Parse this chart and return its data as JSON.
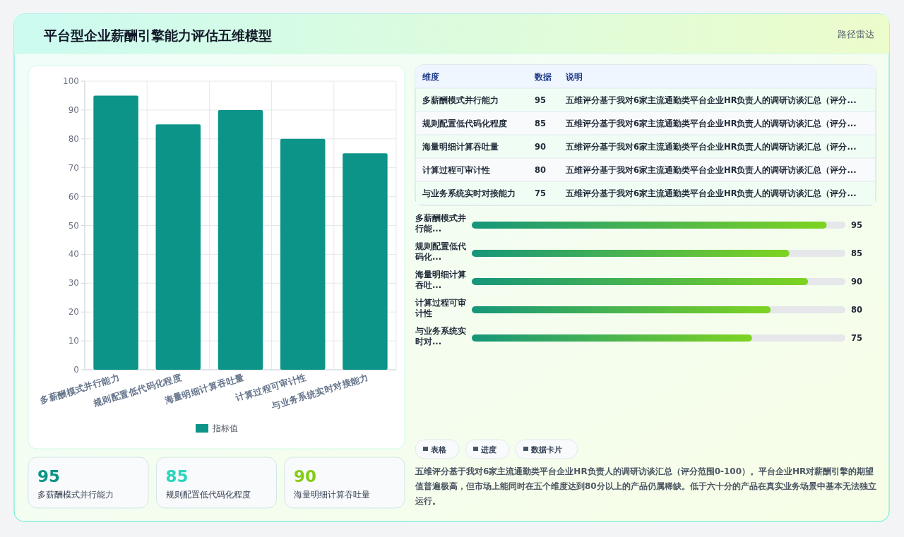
{
  "chart_data": [
    {
      "type": "other",
      "title": "平台型企业薪酬引擎能力评估五维模型",
      "subtitle": "路径雷达"
    },
    {
      "type": "bar",
      "categories": [
        "多薪酬模式并行能力",
        "规则配置低代码化程度",
        "海量明细计算吞吐量",
        "计算过程可审计性",
        "与业务系统实时对接能力"
      ],
      "series": [
        {
          "name": "指标值",
          "color": "#0d9488",
          "values": [
            95,
            85,
            90,
            80,
            75
          ]
        }
      ],
      "ylim": [
        0,
        100
      ],
      "yticks": [
        0,
        10,
        20,
        30,
        40,
        50,
        60,
        70,
        80,
        90,
        100
      ],
      "grid": true,
      "legend": "bottom"
    },
    {
      "type": "other",
      "annotations": [
        "维度",
        "数据",
        "说明",
        "多薪酬模式并行能力",
        "95",
        "五维评分基于我对6家主流通勤类平台企业HR负责人的调研访谈汇总（评分...",
        "规则配置低代码化程度",
        "85",
        "五维评分基于我对6家主流通勤类平台企业HR负责人的调研访谈汇总（评分...",
        "海量明细计算吞吐量",
        "90",
        "五维评分基于我对6家主流通勤类平台企业HR负责人的调研访谈汇总（评分...",
        "计算过程可审计性",
        "80",
        "五维评分基于我对6家主流通勤类平台企业HR负责人的调研访谈汇总（评分...",
        "与业务系统实时对接能力",
        "75",
        "五维评分基于我对6家主流通勤类平台企业HR负责人的调研访谈汇总（评分..."
      ]
    },
    {
      "type": "bar",
      "orientation": "horizontal",
      "categories": [
        "多薪酬模式并行能...",
        "规则配置低代码化...",
        "海量明细计算吞吐...",
        "计算过程可审计性",
        "与业务系统实时对..."
      ],
      "series": [
        {
          "color": "#16967a",
          "values": [
            95,
            85,
            90,
            80,
            75
          ]
        }
      ],
      "xlim": [
        0,
        100
      ],
      "data_labels": true,
      "tick_labels": "y"
    },
    {
      "type": "other",
      "annotations": [
        "95",
        "多薪酬模式并行能力",
        "85",
        "规则配置低代码化程度",
        "90",
        "海量明细计算吞吐量"
      ]
    },
    {
      "type": "other",
      "annotations": [
        "表格",
        "进度",
        "数据卡片",
        "五维评分基于我对6家主流通勤类平台企业HR负责人的调研访谈汇总（评分范围0-100）。平台企业HR对薪酬引擎的期望值普遍极高，但市场上能同时在五个维度达到80分以上的产品仍属稀缺。低于六十分的产品在真实业务场景中基本无法独立运行。"
      ]
    }
  ]
}
